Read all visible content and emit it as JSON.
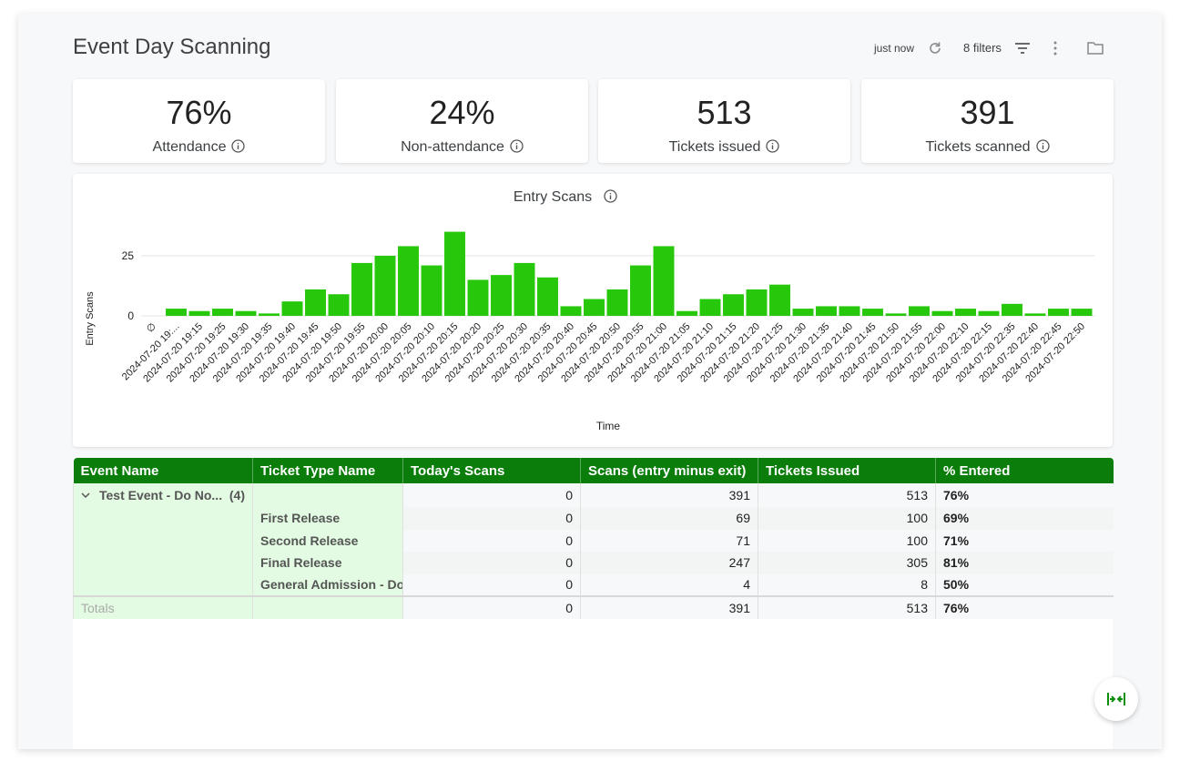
{
  "header": {
    "title": "Event Day Scanning",
    "refreshed": "just now",
    "filters": "8 filters"
  },
  "kpis": [
    {
      "value": "76%",
      "label": "Attendance"
    },
    {
      "value": "24%",
      "label": "Non-attendance"
    },
    {
      "value": "513",
      "label": "Tickets issued"
    },
    {
      "value": "391",
      "label": "Tickets scanned"
    }
  ],
  "chart_data": {
    "type": "bar",
    "title": "Entry Scans",
    "x_label": "Time",
    "y_label": "Entry Scans",
    "categories": [
      "∅",
      "2024-07-20 19:...",
      "2024-07-20 19:15",
      "2024-07-20 19:25",
      "2024-07-20 19:30",
      "2024-07-20 19:35",
      "2024-07-20 19:40",
      "2024-07-20 19:45",
      "2024-07-20 19:50",
      "2024-07-20 19:55",
      "2024-07-20 20:00",
      "2024-07-20 20:05",
      "2024-07-20 20:10",
      "2024-07-20 20:15",
      "2024-07-20 20:20",
      "2024-07-20 20:25",
      "2024-07-20 20:30",
      "2024-07-20 20:35",
      "2024-07-20 20:40",
      "2024-07-20 20:45",
      "2024-07-20 20:50",
      "2024-07-20 20:55",
      "2024-07-20 21:00",
      "2024-07-20 21:05",
      "2024-07-20 21:10",
      "2024-07-20 21:15",
      "2024-07-20 21:20",
      "2024-07-20 21:25",
      "2024-07-20 21:30",
      "2024-07-20 21:35",
      "2024-07-20 21:40",
      "2024-07-20 21:45",
      "2024-07-20 21:50",
      "2024-07-20 21:55",
      "2024-07-20 22:00",
      "2024-07-20 22:10",
      "2024-07-20 22:15",
      "2024-07-20 22:35",
      "2024-07-20 22:40",
      "2024-07-20 22:45",
      "2024-07-20 22:50"
    ],
    "values": [
      null,
      3,
      2,
      3,
      2,
      1,
      6,
      11,
      9,
      22,
      25,
      29,
      21,
      35,
      15,
      17,
      22,
      16,
      4,
      7,
      11,
      21,
      29,
      2,
      7,
      9,
      11,
      13,
      3,
      4,
      4,
      3,
      1,
      4,
      2,
      3,
      2,
      5,
      1,
      3,
      3
    ],
    "color": "#27c80b",
    "ylim": [
      0,
      38
    ],
    "yticks": [
      0,
      25
    ],
    "grid": true
  },
  "table": {
    "columns": [
      "Event Name",
      "Ticket Type Name",
      "Today's Scans",
      "Scans (entry minus exit)",
      "Tickets Issued",
      "% Entered"
    ],
    "group": {
      "name": "Test Event - Do No...",
      "count": "(4)",
      "cells": [
        "0",
        "391",
        "513",
        "76%"
      ]
    },
    "rows": [
      [
        "First Release",
        "0",
        "69",
        "100",
        "69%"
      ],
      [
        "Second Release",
        "0",
        "71",
        "100",
        "71%"
      ],
      [
        "Final Release",
        "0",
        "247",
        "305",
        "81%"
      ],
      [
        "General Admission - Doo",
        "0",
        "4",
        "8",
        "50%"
      ]
    ],
    "totals": {
      "label": "Totals",
      "cells": [
        "0",
        "391",
        "513",
        "76%"
      ]
    }
  }
}
